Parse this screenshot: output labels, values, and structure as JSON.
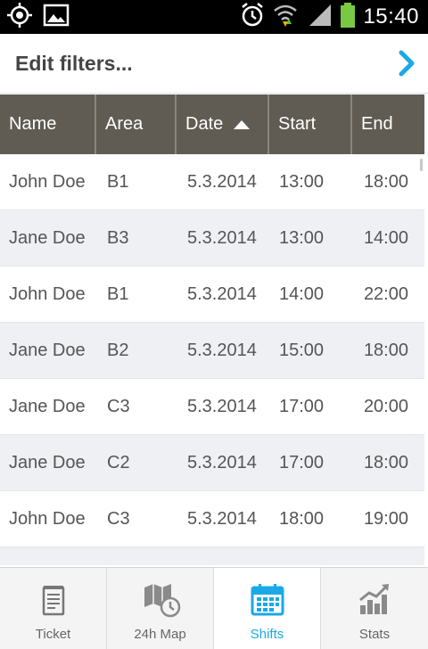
{
  "status_bar": {
    "time": "15:40",
    "icons": [
      "gps-icon",
      "image-icon",
      "alarm-icon",
      "wifi-icon",
      "signal-icon",
      "battery-icon"
    ]
  },
  "filter": {
    "title": "Edit filters...",
    "chevron_color": "#1aa9e6"
  },
  "table": {
    "columns": [
      "Name",
      "Area",
      "Date",
      "Start",
      "End"
    ],
    "sorted_column": "Date",
    "sort_direction": "ascending",
    "rows": [
      [
        "John Doe",
        "B1",
        "5.3.2014",
        "13:00",
        "18:00"
      ],
      [
        "Jane Doe",
        "B3",
        "5.3.2014",
        "13:00",
        "14:00"
      ],
      [
        "John Doe",
        "B1",
        "5.3.2014",
        "14:00",
        "22:00"
      ],
      [
        "Jane Doe",
        "B2",
        "5.3.2014",
        "15:00",
        "18:00"
      ],
      [
        "Jane Doe",
        "C3",
        "5.3.2014",
        "17:00",
        "20:00"
      ],
      [
        "Jane Doe",
        "C2",
        "5.3.2014",
        "17:00",
        "18:00"
      ],
      [
        "John Doe",
        "C3",
        "5.3.2014",
        "18:00",
        "19:00"
      ]
    ],
    "header_color": "#605c54",
    "alt_row_color": "#eef0f3"
  },
  "tabs": [
    {
      "label": "Ticket",
      "icon": "ticket-icon",
      "active": false
    },
    {
      "label": "24h Map",
      "icon": "map-clock-icon",
      "active": false
    },
    {
      "label": "Shifts",
      "icon": "calendar-icon",
      "active": true
    },
    {
      "label": "Stats",
      "icon": "stats-chart-icon",
      "active": false
    }
  ],
  "accent_color": "#1aa9e6"
}
